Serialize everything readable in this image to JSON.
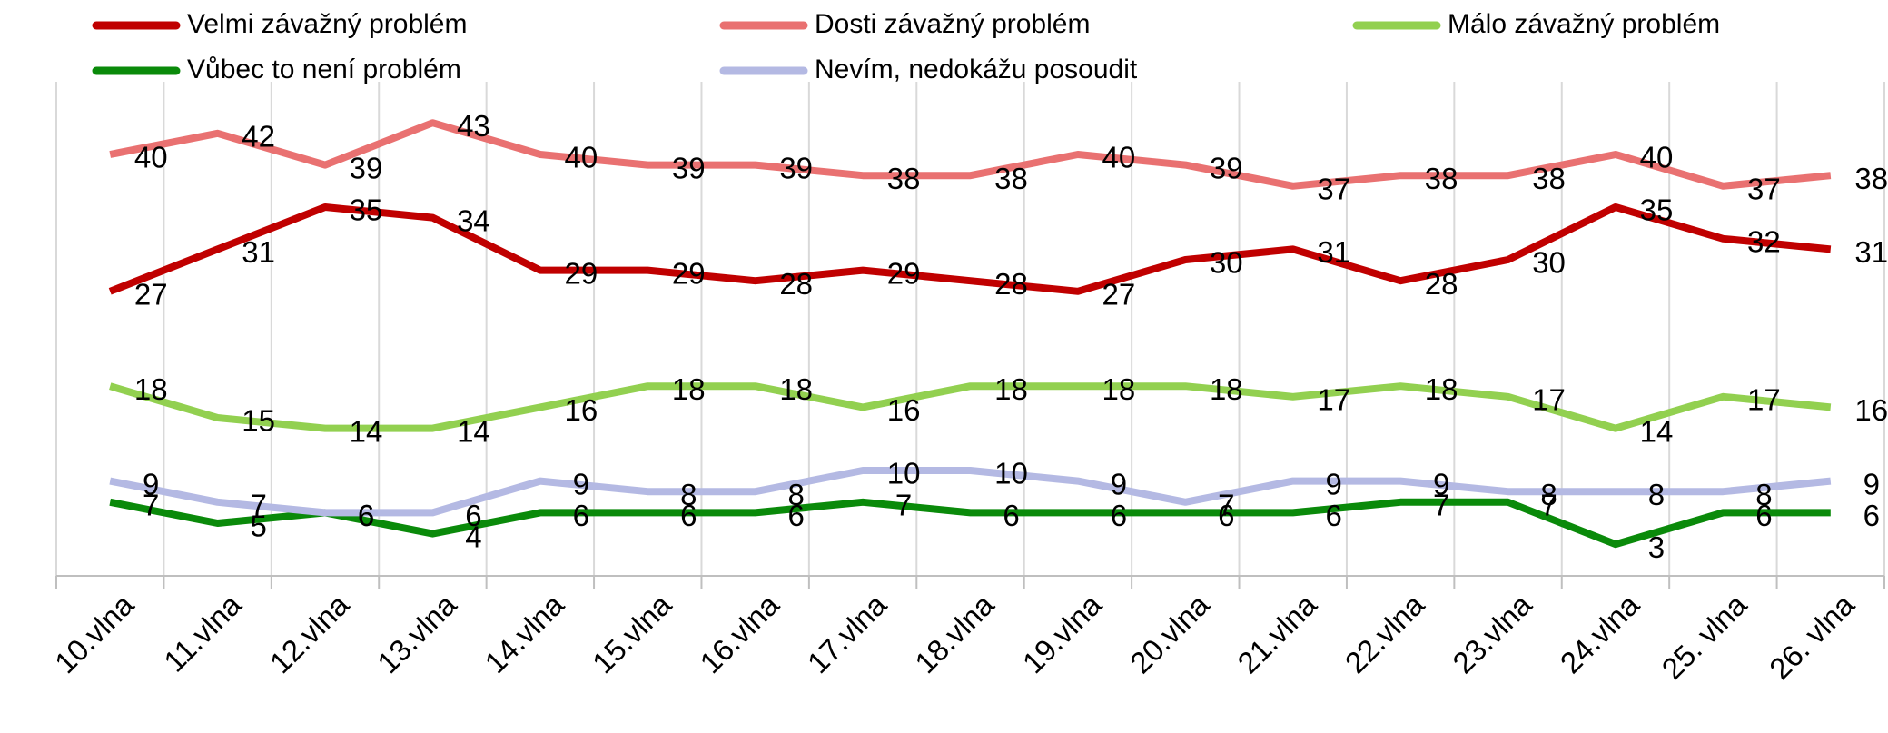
{
  "chart_data": {
    "type": "line",
    "categories": [
      "10.vlna",
      "11.vlna",
      "12.vlna",
      "13.vlna",
      "14.vlna",
      "15.vlna",
      "16.vlna",
      "17.vlna",
      "18.vlna",
      "19.vlna",
      "20.vlna",
      "21.vlna",
      "22.vlna",
      "23.vlna",
      "24.vlna",
      "25. vlna",
      "26. vlna"
    ],
    "series": [
      {
        "name": "Velmi závažný problém",
        "color": "#c00000",
        "values": [
          27,
          31,
          35,
          34,
          29,
          29,
          28,
          29,
          28,
          27,
          30,
          31,
          28,
          30,
          35,
          32,
          31
        ]
      },
      {
        "name": "Dosti závažný problém",
        "color": "#e97171",
        "values": [
          40,
          42,
          39,
          43,
          40,
          39,
          39,
          38,
          38,
          40,
          39,
          37,
          38,
          38,
          40,
          37,
          38
        ]
      },
      {
        "name": "Málo závažný problém",
        "color": "#92d050",
        "values": [
          18,
          15,
          14,
          14,
          16,
          18,
          18,
          16,
          18,
          18,
          18,
          17,
          18,
          17,
          14,
          17,
          16
        ]
      },
      {
        "name": "Vůbec to není problém",
        "color": "#0a8a0a",
        "values": [
          7,
          5,
          6,
          4,
          6,
          6,
          6,
          7,
          6,
          6,
          6,
          6,
          7,
          7,
          3,
          6,
          6
        ]
      },
      {
        "name": "Nevím, nedokážu posoudit",
        "color": "#b4b9e3",
        "values": [
          9,
          7,
          6,
          6,
          9,
          8,
          8,
          10,
          10,
          9,
          7,
          9,
          9,
          8,
          8,
          8,
          9
        ]
      }
    ],
    "ylim": [
      0,
      45
    ],
    "grid": true,
    "legend": "top"
  }
}
